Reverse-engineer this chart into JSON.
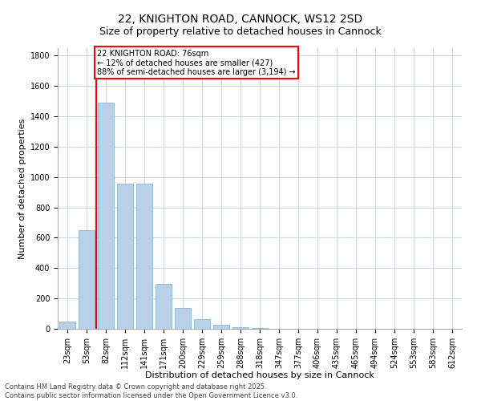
{
  "title_line1": "22, KNIGHTON ROAD, CANNOCK, WS12 2SD",
  "title_line2": "Size of property relative to detached houses in Cannock",
  "xlabel": "Distribution of detached houses by size in Cannock",
  "ylabel": "Number of detached properties",
  "categories": [
    "23sqm",
    "53sqm",
    "82sqm",
    "112sqm",
    "141sqm",
    "171sqm",
    "200sqm",
    "229sqm",
    "259sqm",
    "288sqm",
    "318sqm",
    "347sqm",
    "377sqm",
    "406sqm",
    "435sqm",
    "465sqm",
    "494sqm",
    "524sqm",
    "553sqm",
    "583sqm",
    "612sqm"
  ],
  "values": [
    45,
    650,
    1490,
    955,
    955,
    295,
    135,
    65,
    25,
    10,
    5,
    2,
    2,
    1,
    0,
    0,
    0,
    0,
    0,
    0,
    0
  ],
  "bar_color": "#b8d0e8",
  "bar_edge_color": "#7aaac8",
  "vline_x": 1.5,
  "vline_color": "red",
  "annotation_text": "22 KNIGHTON ROAD: 76sqm\n← 12% of detached houses are smaller (427)\n88% of semi-detached houses are larger (3,194) →",
  "annotation_box_color": "red",
  "annotation_text_color": "black",
  "annotation_bg_color": "white",
  "ylim": [
    0,
    1850
  ],
  "yticks": [
    0,
    200,
    400,
    600,
    800,
    1000,
    1200,
    1400,
    1600,
    1800
  ],
  "footnote_line1": "Contains HM Land Registry data © Crown copyright and database right 2025.",
  "footnote_line2": "Contains public sector information licensed under the Open Government Licence v3.0.",
  "bg_color": "#ffffff",
  "grid_color": "#ccd9e8",
  "title_fontsize": 10,
  "subtitle_fontsize": 9,
  "xlabel_fontsize": 8,
  "ylabel_fontsize": 8,
  "tick_fontsize": 7,
  "footnote_fontsize": 6,
  "annot_fontsize": 7
}
